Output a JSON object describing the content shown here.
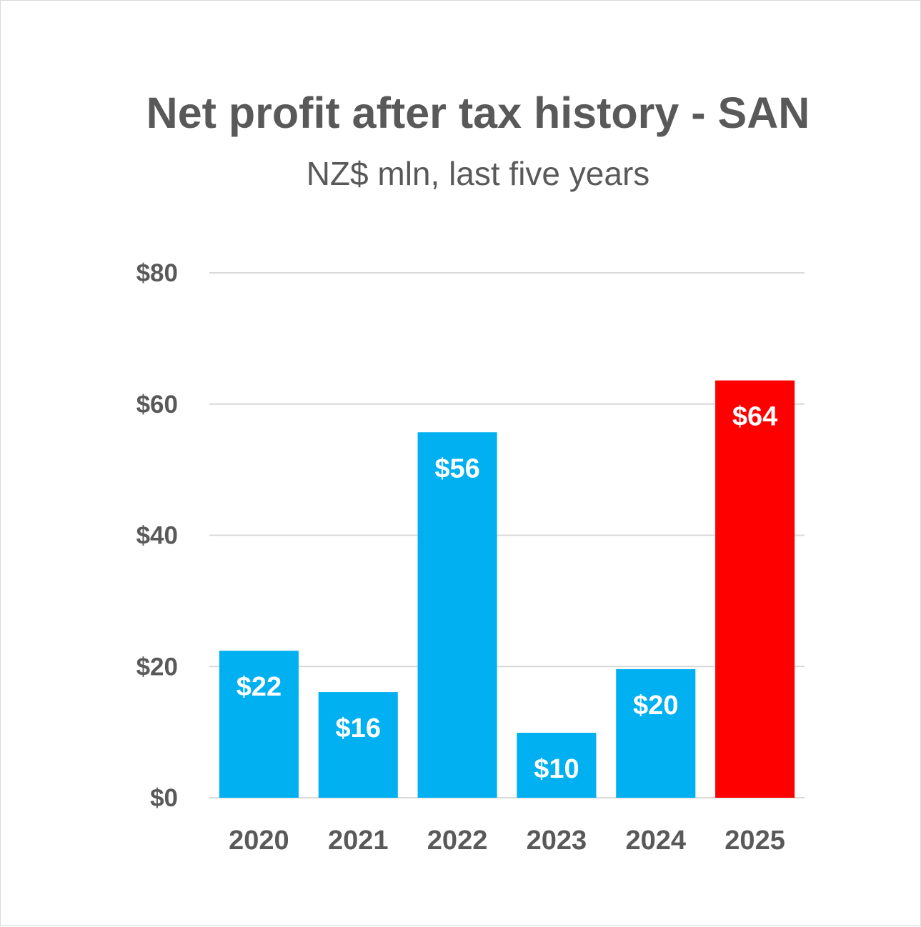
{
  "chart_data": {
    "type": "bar",
    "title": "Net profit after tax history - SAN",
    "subtitle": "NZ$ mln, last five years",
    "categories": [
      "2020",
      "2021",
      "2022",
      "2023",
      "2024",
      "2025"
    ],
    "values": [
      22.4,
      16.1,
      55.7,
      9.9,
      19.6,
      63.6
    ],
    "value_labels": [
      "$22",
      "$16",
      "$56",
      "$10",
      "$20",
      "$64"
    ],
    "ylim": [
      0,
      80
    ],
    "yticks": [
      0,
      20,
      40,
      60,
      80
    ],
    "ytick_labels": [
      "$0",
      "$20",
      "$40",
      "$60",
      "$80"
    ],
    "grid": true,
    "colors": {
      "default_bar": "#00b0f0",
      "highlight_bar": "#ff0000",
      "text": "#595959",
      "grid": "#d9d9d9"
    },
    "highlight_category": "2025"
  }
}
